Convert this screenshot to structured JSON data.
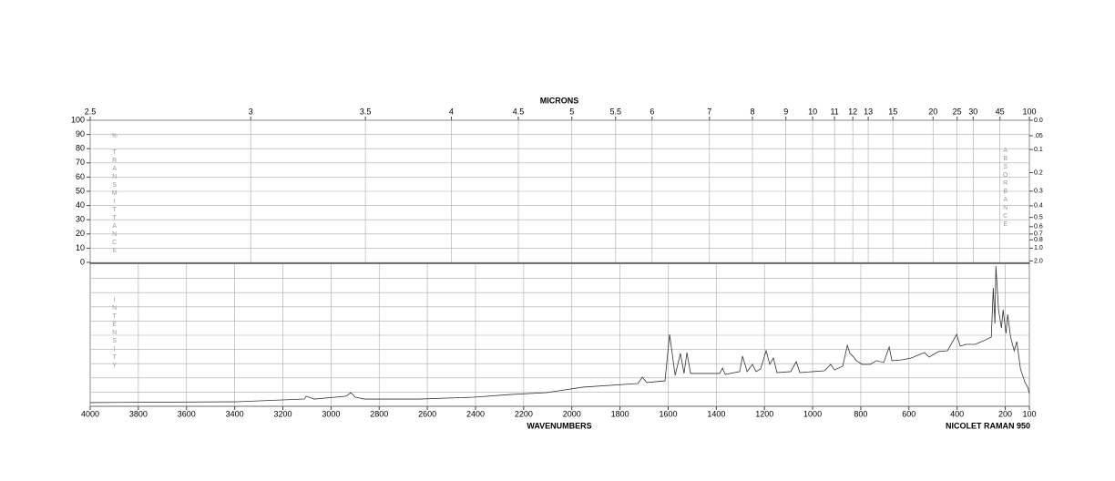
{
  "chart_data": {
    "type": "line",
    "x2_label": "MICRONS",
    "xlabel": "WAVENUMBERS",
    "instrument": "NICOLET RAMAN 950",
    "ylabel": "% TRANSMITTANCE",
    "y2label": "ABSORBANCE",
    "intensity_label": "INTENSITY",
    "xlim": [
      4000,
      100
    ],
    "xticks": [
      4000,
      3800,
      3600,
      3400,
      3200,
      3000,
      2800,
      2600,
      2400,
      2200,
      2000,
      1800,
      1600,
      1400,
      1200,
      1000,
      800,
      600,
      400,
      200,
      100
    ],
    "x2ticks": [
      2.5,
      3,
      3.5,
      4,
      4.5,
      5,
      5.5,
      6,
      7,
      8,
      9,
      10,
      11,
      12,
      13,
      15,
      20,
      25,
      30,
      45,
      100
    ],
    "ylim": [
      0,
      100
    ],
    "yticks": [
      0,
      10,
      20,
      30,
      40,
      50,
      60,
      70,
      80,
      90,
      100
    ],
    "y2ticks": [
      {
        "value": 0,
        "label": "0.0"
      },
      {
        "value": 0.05,
        "label": ".05"
      },
      0.1,
      0.2,
      0.3,
      0.4,
      0.5,
      0.6,
      0.7,
      0.8,
      {
        "value": 1,
        "label": "1.0"
      },
      {
        "value": 2,
        "label": "2.0"
      }
    ],
    "intensity_lim": [
      0,
      100
    ],
    "grid": true,
    "x": [
      4000,
      3390,
      3111,
      3103,
      3069,
      2937,
      2918,
      2899,
      2861,
      2634,
      2407,
      2256,
      2105,
      1953,
      1726,
      1707,
      1689,
      1613,
      1594,
      1571,
      1549,
      1534,
      1522,
      1507,
      1386,
      1374,
      1363,
      1303,
      1291,
      1272,
      1250,
      1235,
      1216,
      1193,
      1178,
      1163,
      1148,
      1091,
      1068,
      1053,
      951,
      925,
      909,
      875,
      856,
      845,
      833,
      818,
      795,
      761,
      735,
      705,
      682,
      671,
      629,
      591,
      535,
      516,
      478,
      440,
      402,
      387,
      364,
      326,
      288,
      258,
      250,
      243,
      239,
      228,
      216,
      209,
      197,
      190,
      178,
      163,
      152,
      137,
      118,
      107,
      100
    ],
    "series": [
      {
        "color": "#333333",
        "values": [
          2.6,
          3.2,
          5.1,
          7.1,
          5.1,
          7.1,
          9.6,
          6.4,
          5.1,
          5.1,
          6.4,
          8.3,
          9.6,
          13.5,
          16.0,
          20.5,
          16.7,
          17.9,
          50.6,
          21.8,
          37.2,
          23.1,
          37.8,
          23.1,
          23.1,
          26.9,
          22.4,
          24.4,
          35.3,
          24.4,
          29.5,
          24.4,
          26.3,
          39.1,
          29.5,
          34.0,
          23.7,
          24.4,
          31.4,
          23.7,
          25.0,
          29.5,
          25.6,
          28.2,
          42.9,
          37.2,
          35.3,
          32.1,
          29.5,
          29.5,
          32.1,
          30.8,
          41.7,
          32.1,
          32.7,
          34.0,
          37.8,
          34.6,
          38.5,
          39.1,
          50.6,
          42.3,
          43.6,
          43.6,
          46.2,
          48.7,
          83.3,
          58.3,
          98.7,
          67.9,
          55.1,
          67.9,
          51.3,
          64.7,
          48.7,
          39.1,
          45.5,
          26.3,
          16.7,
          13.5,
          9.0
        ]
      }
    ]
  }
}
